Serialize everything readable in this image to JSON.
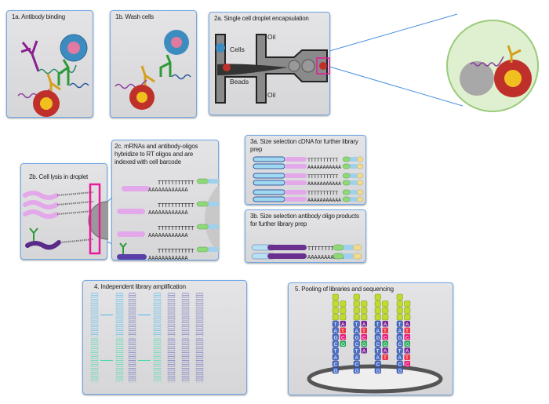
{
  "panels": {
    "p1a": {
      "title": "1a. Antibody binding"
    },
    "p1b": {
      "title": "1b. Wash cells"
    },
    "p2a": {
      "title": "2a. Single cell droplet encapsulation",
      "labels": {
        "oil_top": "Oil",
        "oil_bottom": "Oil",
        "cells": "Cells",
        "beads": "Beads"
      }
    },
    "p2b": {
      "title": "2b. Cell lysis in droplet"
    },
    "p2c": {
      "title": "2c. mRNAs and antibody-oligos hybridize to RT oligos and are indexed with cell barcode",
      "t_strand": "TTTTTTTTTTT",
      "a_strand": "AAAAAAAAAAAA"
    },
    "p3a": {
      "title": "3a. Size selection cDNA for further library prep",
      "t_strand": "TTTTTTTTTT",
      "a_strand": "AAAAAAAAAAA"
    },
    "p3b": {
      "title": "3b. Size selection antibody  oligo products for further library prep",
      "t_strand": "TTTTTTTTTTT",
      "a_strand": "AAAAAAAAAAAA"
    },
    "p4": {
      "title": "4. Independent library amplification"
    },
    "p5": {
      "title": "5. Pooling of libraries and sequencing",
      "template_bases": [
        "T",
        "A",
        "G",
        "C",
        "T",
        "A",
        "C",
        "G"
      ],
      "read_bases": [
        "A",
        "T",
        "C",
        "G",
        "A",
        "T",
        "C",
        "G"
      ],
      "read_lengths": [
        4,
        5,
        6,
        7
      ]
    }
  },
  "colors": {
    "border": "#6fa8e6",
    "magenta": "#e8199a",
    "A": "#7a2a9a",
    "T": "#ee3344",
    "C": "#e8197a",
    "G": "#22aa55",
    "template": "#4a6fc8",
    "adapter": "#c2d930"
  }
}
